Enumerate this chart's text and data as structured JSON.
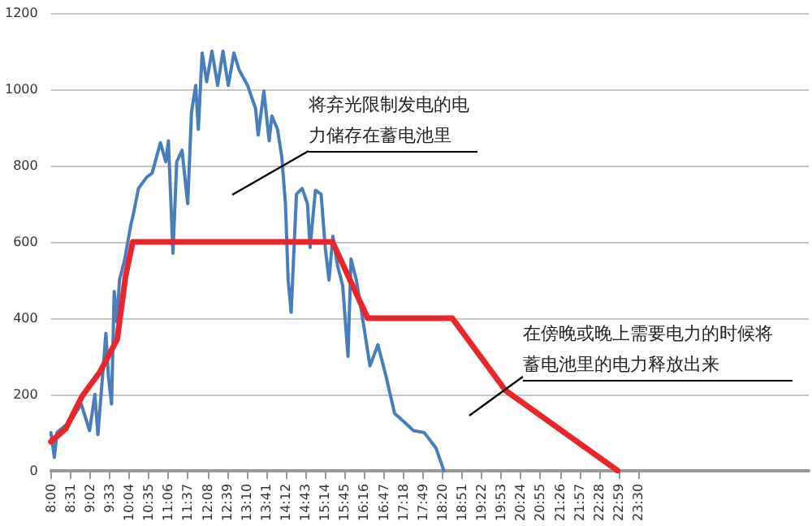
{
  "chart_data": {
    "type": "line",
    "xlim": [
      8,
      28
    ],
    "ylim": [
      0,
      1200
    ],
    "yticks": [
      0,
      200,
      400,
      600,
      800,
      1000,
      1200
    ],
    "xticks": [
      {
        "value": 8,
        "label": "8:00"
      },
      {
        "value": 8.5167,
        "label": "8:31"
      },
      {
        "value": 9.0333,
        "label": "9:02"
      },
      {
        "value": 9.55,
        "label": "9:33"
      },
      {
        "value": 10.0667,
        "label": "10:04"
      },
      {
        "value": 10.5833,
        "label": "10:35"
      },
      {
        "value": 11.1,
        "label": "11:06"
      },
      {
        "value": 11.6167,
        "label": "11:37"
      },
      {
        "value": 12.1333,
        "label": "12:08"
      },
      {
        "value": 12.65,
        "label": "12:39"
      },
      {
        "value": 13.1667,
        "label": "13:10"
      },
      {
        "value": 13.6833,
        "label": "13:41"
      },
      {
        "value": 14.2,
        "label": "14:12"
      },
      {
        "value": 14.7167,
        "label": "14:43"
      },
      {
        "value": 15.2333,
        "label": "15:14"
      },
      {
        "value": 15.75,
        "label": "15:45"
      },
      {
        "value": 16.2667,
        "label": "16:16"
      },
      {
        "value": 16.7833,
        "label": "16:47"
      },
      {
        "value": 17.3,
        "label": "17:18"
      },
      {
        "value": 17.8167,
        "label": "17:49"
      },
      {
        "value": 18.3333,
        "label": "18:20"
      },
      {
        "value": 18.85,
        "label": "18:51"
      },
      {
        "value": 19.3667,
        "label": "19:22"
      },
      {
        "value": 19.8833,
        "label": "19:53"
      },
      {
        "value": 20.4,
        "label": "20:24"
      },
      {
        "value": 20.9167,
        "label": "20:55"
      },
      {
        "value": 21.4333,
        "label": "21:26"
      },
      {
        "value": 21.95,
        "label": "21:57"
      },
      {
        "value": 22.4667,
        "label": "22:28"
      },
      {
        "value": 22.9833,
        "label": "22:59"
      },
      {
        "value": 23.5,
        "label": "23:30"
      }
    ],
    "grid": "y",
    "marker": "none",
    "line_style": "solid",
    "series": [
      {
        "color": "#4a7ebb",
        "x": [
          8.0,
          8.09,
          8.16,
          8.52,
          8.8,
          9.02,
          9.16,
          9.24,
          9.38,
          9.45,
          9.52,
          9.6,
          9.67,
          9.74,
          9.81,
          9.95,
          10.1,
          10.17,
          10.31,
          10.53,
          10.67,
          10.89,
          11.03,
          11.1,
          11.22,
          11.32,
          11.46,
          11.61,
          11.71,
          11.82,
          11.89,
          11.99,
          12.11,
          12.25,
          12.4,
          12.54,
          12.68,
          12.83,
          12.97,
          13.19,
          13.4,
          13.47,
          13.62,
          13.76,
          13.83,
          13.98,
          14.09,
          14.19,
          14.26,
          14.34,
          14.48,
          14.63,
          14.77,
          14.84,
          14.98,
          15.13,
          15.24,
          15.34,
          15.44,
          15.56,
          15.7,
          15.84,
          15.92,
          16.06,
          16.2,
          16.42,
          16.63,
          16.85,
          17.07,
          17.3,
          17.57,
          17.85,
          18.16,
          18.37
        ],
        "values": [
          100,
          35,
          100,
          130,
          175,
          105,
          200,
          95,
          270,
          360,
          245,
          175,
          470,
          390,
          500,
          555,
          640,
          670,
          740,
          770,
          780,
          860,
          810,
          865,
          570,
          810,
          840,
          700,
          940,
          1010,
          895,
          1095,
          1020,
          1100,
          1010,
          1100,
          1010,
          1095,
          1050,
          1010,
          950,
          880,
          995,
          865,
          930,
          895,
          825,
          700,
          500,
          415,
          725,
          740,
          700,
          585,
          735,
          725,
          585,
          500,
          615,
          540,
          485,
          300,
          555,
          500,
          415,
          275,
          330,
          245,
          150,
          130,
          105,
          100,
          60,
          0
        ]
      },
      {
        "color": "#e8262b",
        "x": [
          8.0,
          8.39,
          8.82,
          9.3,
          9.75,
          9.97,
          10.16,
          15.43,
          16.36,
          18.59,
          20.0,
          22.96
        ],
        "values": [
          76,
          110,
          195,
          260,
          345,
          510,
          600,
          600,
          400,
          400,
          210,
          0
        ]
      }
    ],
    "annotations": [
      "将弃光限制发电的电力储存在蓄电池里",
      "在傍晚或晚上需要电力的时候将蓄电池里的电力释放出来"
    ]
  }
}
